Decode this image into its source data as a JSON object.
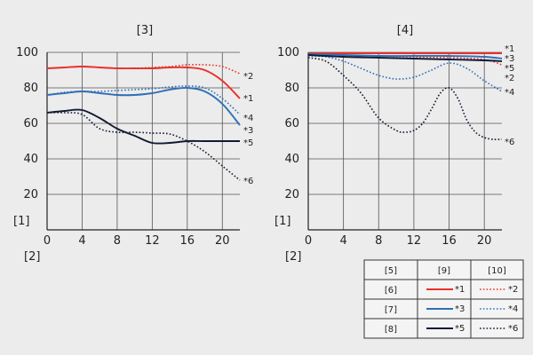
{
  "colors": {
    "red": "#e8302a",
    "blue": "#2f6fb7",
    "navy": "#111a33",
    "grid": "#555555"
  },
  "chart_data": [
    {
      "type": "line",
      "title": "[3]",
      "ylabel": "[1]",
      "xlabel": "[2]",
      "xlim": [
        0,
        22
      ],
      "ylim": [
        0,
        100
      ],
      "xticks": [
        "0",
        "4",
        "8",
        "12",
        "16",
        "20"
      ],
      "yticks": [
        "20",
        "40",
        "60",
        "80",
        "100"
      ],
      "series": [
        {
          "name": "*1",
          "color": "red",
          "style": "solid",
          "x": [
            0,
            2,
            4,
            6,
            8,
            10,
            12,
            14,
            16,
            18,
            20,
            22
          ],
          "y": [
            91,
            91.5,
            92,
            91.5,
            91,
            91,
            91,
            91.5,
            91.5,
            90,
            84,
            74
          ]
        },
        {
          "name": "*2",
          "color": "red",
          "style": "dotted",
          "x": [
            0,
            2,
            4,
            6,
            8,
            10,
            12,
            14,
            16,
            18,
            20,
            22
          ],
          "y": [
            91,
            91.5,
            92,
            91.5,
            91,
            91,
            91.5,
            92,
            93,
            93,
            92,
            88
          ]
        },
        {
          "name": "*3",
          "color": "blue",
          "style": "solid",
          "x": [
            0,
            2,
            4,
            6,
            8,
            10,
            12,
            14,
            16,
            18,
            20,
            22
          ],
          "y": [
            76,
            77,
            78,
            77,
            76,
            76,
            77,
            79,
            80,
            78,
            71,
            59
          ]
        },
        {
          "name": "*4",
          "color": "blue",
          "style": "dotted",
          "x": [
            0,
            2,
            4,
            6,
            8,
            10,
            12,
            14,
            16,
            18,
            20,
            22
          ],
          "y": [
            76,
            77.5,
            78,
            78,
            78.5,
            79,
            79.5,
            80.5,
            81,
            80,
            74,
            65
          ]
        },
        {
          "name": "*5",
          "color": "navy",
          "style": "solid",
          "x": [
            0,
            2,
            4,
            6,
            8,
            10,
            12,
            14,
            16,
            18,
            20,
            22
          ],
          "y": [
            66,
            67,
            67.5,
            63,
            57,
            53,
            49,
            49,
            50,
            50,
            50,
            50
          ]
        },
        {
          "name": "*6",
          "color": "navy",
          "style": "dotted",
          "x": [
            0,
            2,
            4,
            6,
            8,
            10,
            12,
            14,
            16,
            18,
            20,
            22
          ],
          "y": [
            66,
            66,
            65,
            57,
            55,
            55,
            54.5,
            54,
            50,
            44,
            36,
            28
          ]
        }
      ],
      "end_labels": [
        "*2",
        "*1",
        "*4",
        "*3",
        "*5",
        "*6"
      ]
    },
    {
      "type": "line",
      "title": "[4]",
      "ylabel": "[1]",
      "xlabel": "[2]",
      "xlim": [
        0,
        22
      ],
      "ylim": [
        0,
        100
      ],
      "xticks": [
        "0",
        "4",
        "8",
        "12",
        "16",
        "20"
      ],
      "yticks": [
        "20",
        "40",
        "60",
        "80",
        "100"
      ],
      "series": [
        {
          "name": "*1",
          "color": "red",
          "style": "solid",
          "x": [
            0,
            4,
            8,
            12,
            16,
            20,
            22
          ],
          "y": [
            99.5,
            99.5,
            99.5,
            99.5,
            99.5,
            99.5,
            99.5
          ]
        },
        {
          "name": "*2",
          "color": "red",
          "style": "dotted",
          "x": [
            0,
            4,
            8,
            12,
            16,
            20,
            22
          ],
          "y": [
            99,
            98.5,
            98,
            97.5,
            97,
            96,
            93
          ]
        },
        {
          "name": "*3",
          "color": "blue",
          "style": "solid",
          "x": [
            0,
            4,
            8,
            12,
            16,
            20,
            22
          ],
          "y": [
            99,
            98.5,
            98,
            98,
            98,
            97.5,
            96.5
          ]
        },
        {
          "name": "*4",
          "color": "blue",
          "style": "dotted",
          "x": [
            0,
            2,
            4,
            6,
            8,
            10,
            12,
            14,
            16,
            18,
            20,
            22
          ],
          "y": [
            98,
            97.5,
            95,
            91,
            87,
            85,
            86,
            90,
            94,
            91,
            84,
            78
          ]
        },
        {
          "name": "*5",
          "color": "navy",
          "style": "solid",
          "x": [
            0,
            4,
            8,
            12,
            16,
            20,
            22
          ],
          "y": [
            98.5,
            97.5,
            97,
            96.5,
            96,
            95.5,
            95
          ]
        },
        {
          "name": "*6",
          "color": "navy",
          "style": "dotted",
          "x": [
            0,
            2,
            4,
            6,
            8,
            10,
            11,
            12,
            13,
            14,
            15,
            16,
            17,
            18,
            19,
            20,
            21,
            22
          ],
          "y": [
            97,
            95,
            87,
            77,
            63,
            56,
            55,
            56,
            60,
            68,
            77,
            80,
            74,
            62,
            55,
            52,
            51,
            51
          ]
        }
      ],
      "end_labels": [
        "*1",
        "*3",
        "*5",
        "*2",
        "*4",
        "*6"
      ]
    }
  ],
  "legend": {
    "headers": [
      "[5]",
      "[9]",
      "[10]"
    ],
    "rows": [
      {
        "label": "[6]",
        "solid": "*1",
        "dotted": "*2",
        "color": "red"
      },
      {
        "label": "[7]",
        "solid": "*3",
        "dotted": "*4",
        "color": "blue"
      },
      {
        "label": "[8]",
        "solid": "*5",
        "dotted": "*6",
        "color": "navy"
      }
    ]
  }
}
